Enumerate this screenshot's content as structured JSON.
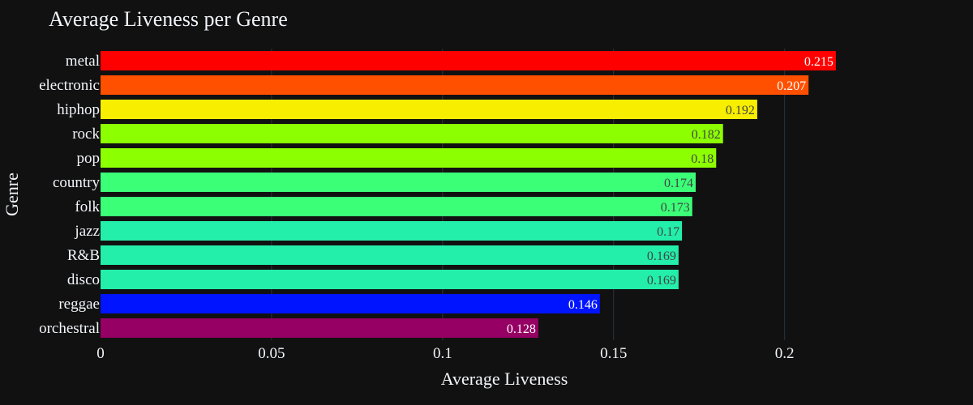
{
  "chart_data": {
    "type": "bar",
    "orientation": "horizontal",
    "title": "Average Liveness per Genre",
    "xlabel": "Average Liveness",
    "ylabel": "Genre",
    "xlim": [
      0,
      0.2475
    ],
    "xticks": [
      0,
      0.05,
      0.1,
      0.15,
      0.2
    ],
    "xtick_labels": [
      "0",
      "0.05",
      "0.1",
      "0.15",
      "0.2"
    ],
    "grid": true,
    "legend": false,
    "categories": [
      "metal",
      "electronic",
      "hiphop",
      "rock",
      "pop",
      "country",
      "folk",
      "jazz",
      "R&B",
      "disco",
      "reggae",
      "orchestral"
    ],
    "values": [
      0.215,
      0.207,
      0.192,
      0.182,
      0.18,
      0.174,
      0.173,
      0.17,
      0.169,
      0.169,
      0.146,
      0.128
    ],
    "value_labels": [
      "0.215",
      "0.207",
      "0.192",
      "0.182",
      "0.18",
      "0.174",
      "0.173",
      "0.17",
      "0.169",
      "0.169",
      "0.146",
      "0.128"
    ],
    "colors": [
      "#ff0000",
      "#ff5000",
      "#f7ee00",
      "#8cff00",
      "#8cff00",
      "#3cff78",
      "#3cff78",
      "#23eeaa",
      "#23eeaa",
      "#23eeaa",
      "#0014ff",
      "#960064"
    ],
    "label_colors": [
      "#ffffff",
      "#ffffff",
      "#444444",
      "#444444",
      "#444444",
      "#444444",
      "#444444",
      "#444444",
      "#444444",
      "#444444",
      "#ffffff",
      "#ffffff"
    ]
  },
  "style": {
    "background": "#111111",
    "text_color": "#f2f5fa",
    "grid_color": "#283442"
  }
}
